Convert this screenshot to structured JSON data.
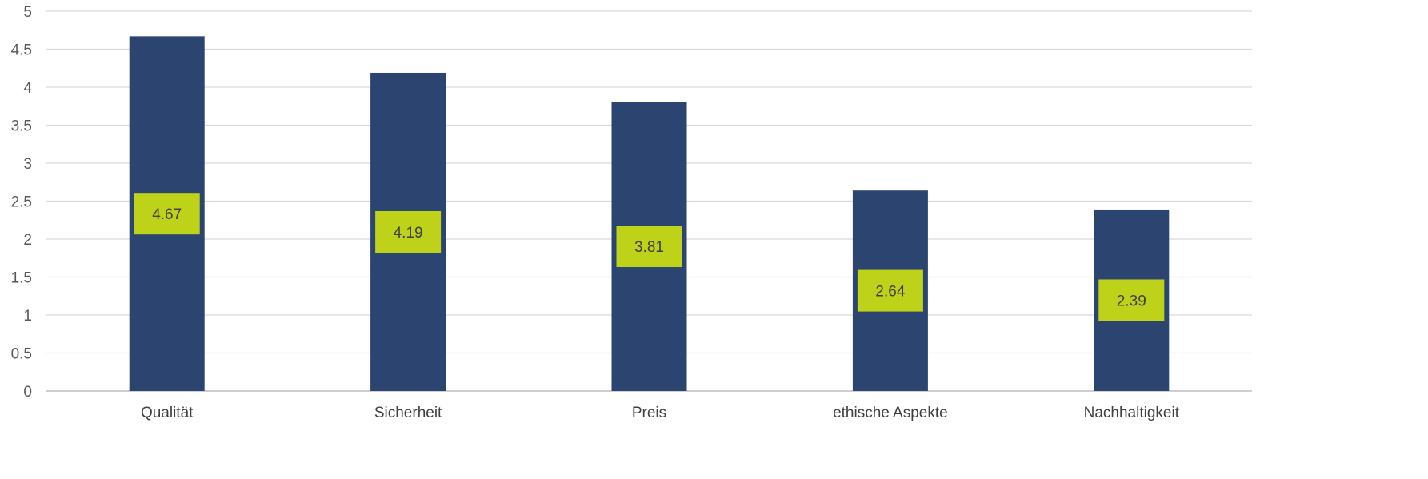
{
  "chart_data": {
    "type": "bar",
    "title": "",
    "xlabel": "",
    "ylabel": "",
    "categories": [
      "Qualität",
      "Sicherheit",
      "Preis",
      "ethische Aspekte",
      "Nachhaltigkeit"
    ],
    "values": [
      4.67,
      4.19,
      3.81,
      2.64,
      2.39
    ],
    "data_labels": [
      "4.67",
      "4.19",
      "3.81",
      "2.64",
      "2.39"
    ],
    "ylim": [
      0,
      5
    ],
    "yticks": [
      0,
      0.5,
      1,
      1.5,
      2,
      2.5,
      3,
      3.5,
      4,
      4.5,
      5
    ],
    "ytick_labels": [
      "0",
      "0.5",
      "1",
      "1.5",
      "2",
      "2.5",
      "3",
      "3.5",
      "4",
      "4.5",
      "5"
    ],
    "grid": true,
    "legend": "none",
    "colors": {
      "bar": "#2c4570",
      "label_box": "#bed21a",
      "grid": "#d9d9d9",
      "axis": "#bfbfbf"
    }
  }
}
